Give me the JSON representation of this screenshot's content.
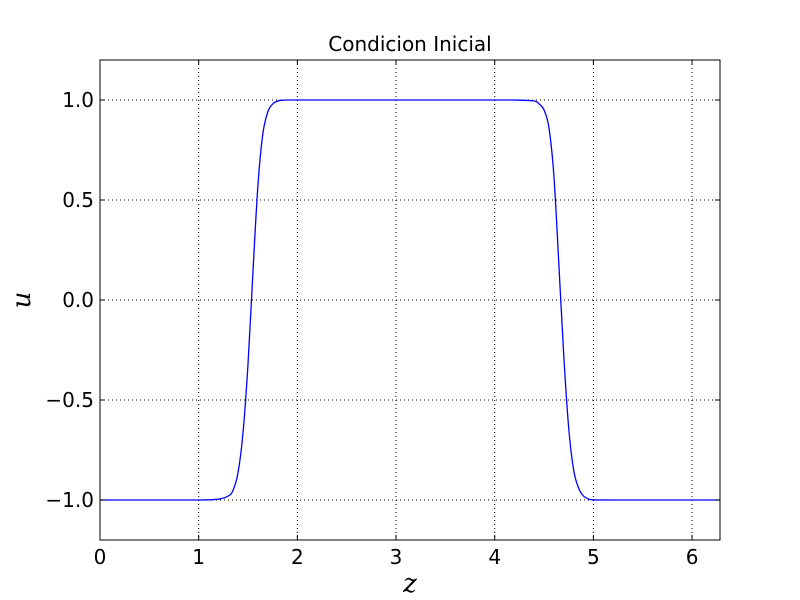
{
  "chart_data": {
    "type": "line",
    "title": "Condicion Inicial",
    "xlabel": "z",
    "ylabel": "u",
    "xlim": [
      0,
      6.283185307
    ],
    "ylim": [
      -1.2,
      1.2
    ],
    "x_ticks": [
      0,
      1,
      2,
      3,
      4,
      5,
      6
    ],
    "x_tick_labels": [
      "0",
      "1",
      "2",
      "3",
      "4",
      "5",
      "6"
    ],
    "y_ticks": [
      -1.0,
      -0.5,
      0.0,
      0.5,
      1.0
    ],
    "y_tick_labels": [
      "−1.0",
      "−0.5",
      "0.0",
      "0.5",
      "1.0"
    ],
    "grid": true,
    "grid_style": "dotted",
    "series": [
      {
        "color": "#0000ff",
        "x": [
          0,
          0.5,
          1.0,
          1.2,
          1.3,
          1.35,
          1.4,
          1.45,
          1.5,
          1.55,
          1.6,
          1.65,
          1.7,
          1.75,
          1.8,
          1.85,
          1.9,
          2.0,
          2.5,
          3.0,
          3.5,
          4.0,
          4.2,
          4.4,
          4.45,
          4.5,
          4.55,
          4.6,
          4.65,
          4.7,
          4.75,
          4.8,
          4.85,
          4.9,
          4.95,
          5.0,
          5.2,
          5.5,
          6.0,
          6.283185307
        ],
        "y": [
          -1.0,
          -1.0,
          -1.0,
          -0.996,
          -0.98,
          -0.95,
          -0.86,
          -0.66,
          -0.32,
          0.14,
          0.57,
          0.83,
          0.94,
          0.98,
          0.995,
          0.999,
          1.0,
          1.0,
          1.0,
          1.0,
          1.0,
          1.0,
          1.0,
          0.995,
          0.98,
          0.95,
          0.86,
          0.62,
          0.18,
          -0.28,
          -0.64,
          -0.85,
          -0.94,
          -0.98,
          -0.995,
          -0.999,
          -1.0,
          -1.0,
          -1.0,
          -1.0
        ]
      }
    ]
  }
}
